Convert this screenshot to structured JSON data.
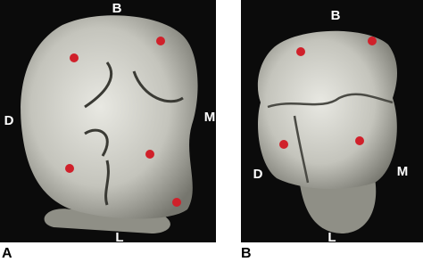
{
  "panels": [
    {
      "label": "A",
      "top": "B",
      "left": "D",
      "right": "M",
      "bottom": "L"
    },
    {
      "label": "B",
      "top": "B",
      "left": "D",
      "right": "M",
      "bottom": "L"
    }
  ]
}
